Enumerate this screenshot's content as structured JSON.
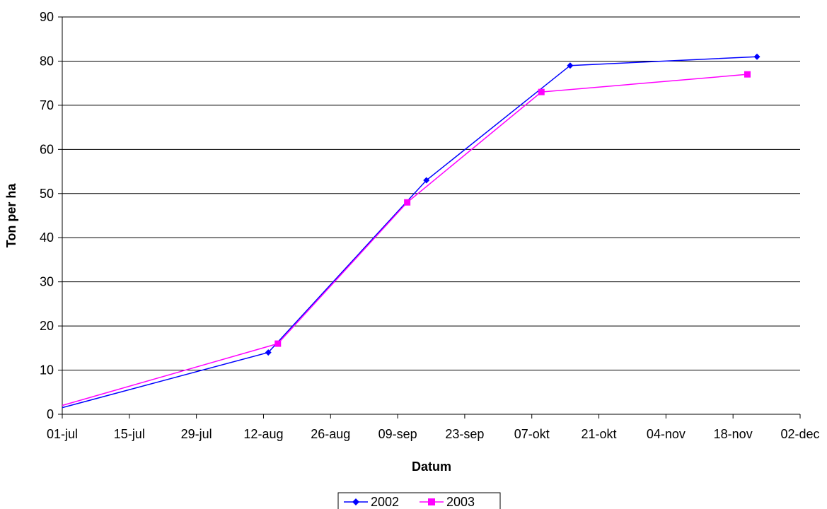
{
  "chart_data": {
    "type": "line",
    "title": "",
    "xlabel": "Datum",
    "ylabel": "Ton per ha",
    "x_ticks": [
      "01-jul",
      "15-jul",
      "29-jul",
      "12-aug",
      "26-aug",
      "09-sep",
      "23-sep",
      "07-okt",
      "21-okt",
      "04-nov",
      "18-nov",
      "02-dec"
    ],
    "xlim": [
      "01-jul",
      "02-dec"
    ],
    "ylim": [
      0,
      90
    ],
    "y_ticks": [
      0,
      10,
      20,
      30,
      40,
      50,
      60,
      70,
      80,
      90
    ],
    "grid": "horizontal",
    "legend": "bottom",
    "series": [
      {
        "name": "2002",
        "color": "#0000FF",
        "marker": "diamond",
        "points": [
          {
            "x": "01-jul",
            "y": 1.5
          },
          {
            "x": "13-aug",
            "y": 14
          },
          {
            "x": "15-sep",
            "y": 53
          },
          {
            "x": "15-okt",
            "y": 79
          },
          {
            "x": "23-nov",
            "y": 81
          }
        ]
      },
      {
        "name": "2003",
        "color": "#FF00FF",
        "marker": "square",
        "points": [
          {
            "x": "01-jul",
            "y": 2
          },
          {
            "x": "15-aug",
            "y": 16
          },
          {
            "x": "11-sep",
            "y": 48
          },
          {
            "x": "09-okt",
            "y": 73
          },
          {
            "x": "21-nov",
            "y": 77
          }
        ]
      }
    ]
  }
}
